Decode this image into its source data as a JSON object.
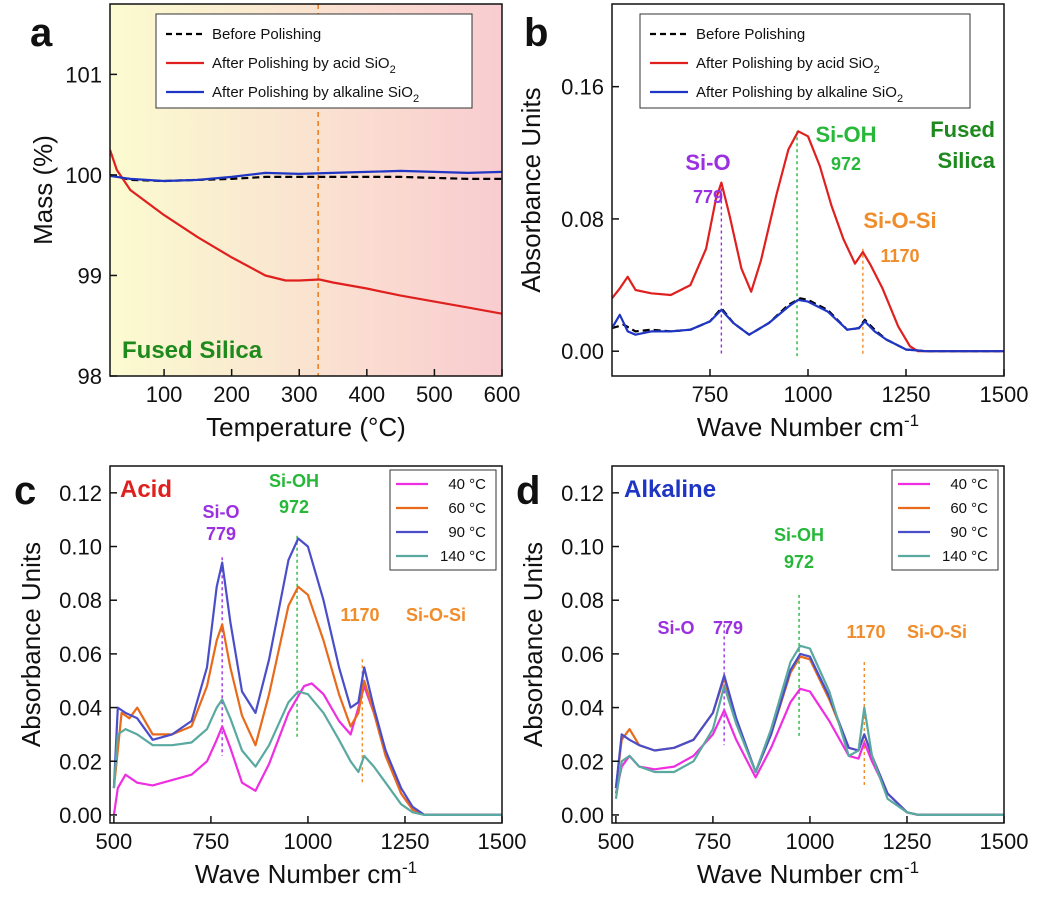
{
  "chart_data": [
    {
      "panel": "a",
      "type": "line",
      "xlabel": "Temperature (°C)",
      "ylabel": "Mass (%)",
      "xlim": [
        20,
        600
      ],
      "ylim": [
        98,
        101.7
      ],
      "xticks": [
        100,
        200,
        300,
        400,
        500,
        600
      ],
      "yticks": [
        98,
        99,
        100,
        101
      ],
      "x_reference_line": 328,
      "background_gradient": [
        "#fbfbd0",
        "#f9ccd0"
      ],
      "corner_label": "Fused Silica",
      "corner_color": "#1e8a1e",
      "legend_position": "top-center",
      "series": [
        {
          "name": "Before Polishing",
          "color": "#000000",
          "dash": "dashed",
          "x": [
            20,
            50,
            100,
            150,
            200,
            250,
            300,
            350,
            400,
            450,
            500,
            550,
            600
          ],
          "y": [
            100.0,
            99.95,
            99.94,
            99.95,
            99.96,
            99.98,
            99.98,
            99.98,
            99.98,
            99.98,
            99.97,
            99.96,
            99.96
          ]
        },
        {
          "name": "After Polishing by acid SiO2",
          "color": "#e0201e",
          "dash": "solid",
          "x": [
            20,
            30,
            50,
            100,
            150,
            200,
            250,
            280,
            300,
            330,
            350,
            400,
            450,
            500,
            550,
            600
          ],
          "y": [
            100.25,
            100.05,
            99.85,
            99.6,
            99.38,
            99.18,
            99.0,
            98.95,
            98.95,
            98.96,
            98.93,
            98.87,
            98.8,
            98.74,
            98.68,
            98.62
          ]
        },
        {
          "name": "After Polishing by alkaline SiO2",
          "color": "#1f35c4",
          "dash": "solid",
          "x": [
            20,
            50,
            100,
            150,
            200,
            250,
            300,
            350,
            400,
            450,
            500,
            550,
            600
          ],
          "y": [
            99.99,
            99.96,
            99.94,
            99.95,
            99.98,
            100.02,
            100.01,
            100.02,
            100.03,
            100.04,
            100.03,
            100.02,
            100.03
          ]
        }
      ]
    },
    {
      "panel": "b",
      "type": "line",
      "xlabel": "Wave Number cm⁻¹",
      "ylabel": "Absorbance Units",
      "xlim": [
        500,
        1500
      ],
      "ylim": [
        -0.015,
        0.21
      ],
      "xticks": [
        750,
        1000,
        1250,
        1500
      ],
      "yticks": [
        0.0,
        0.08,
        0.16
      ],
      "corner_label": [
        "Fused",
        "Silica"
      ],
      "corner_color": "#1e8a1e",
      "legend_position": "top-center",
      "annotations": [
        {
          "text": "Si-O",
          "sub": "779",
          "x": 779,
          "color": "#9b30e0"
        },
        {
          "text": "Si-OH",
          "sub": "972",
          "x": 972,
          "color": "#27b83a"
        },
        {
          "text": "Si-O-Si",
          "sub": "1170",
          "x": 1140,
          "color": "#f08c2a"
        }
      ],
      "series": [
        {
          "name": "Before Polishing",
          "color": "#000000",
          "dash": "dashed",
          "x": [
            500,
            530,
            560,
            600,
            650,
            700,
            750,
            779,
            810,
            850,
            900,
            950,
            980,
            1000,
            1050,
            1100,
            1130,
            1145,
            1170,
            1200,
            1250,
            1300,
            1500
          ],
          "y": [
            0.014,
            0.016,
            0.012,
            0.013,
            0.012,
            0.013,
            0.018,
            0.026,
            0.017,
            0.01,
            0.017,
            0.028,
            0.032,
            0.031,
            0.025,
            0.013,
            0.014,
            0.019,
            0.013,
            0.007,
            0.001,
            0.0,
            0.0
          ]
        },
        {
          "name": "After Polishing by acid SiO2",
          "color": "#e0201e",
          "dash": "solid",
          "x": [
            500,
            520,
            540,
            560,
            600,
            650,
            700,
            740,
            765,
            779,
            800,
            830,
            855,
            880,
            920,
            950,
            975,
            1000,
            1030,
            1060,
            1090,
            1120,
            1140,
            1160,
            1190,
            1230,
            1260,
            1280,
            1500
          ],
          "y": [
            0.032,
            0.038,
            0.045,
            0.037,
            0.035,
            0.034,
            0.04,
            0.062,
            0.092,
            0.102,
            0.082,
            0.05,
            0.036,
            0.055,
            0.095,
            0.122,
            0.133,
            0.13,
            0.112,
            0.088,
            0.068,
            0.053,
            0.06,
            0.052,
            0.038,
            0.015,
            0.003,
            0.0,
            0.0
          ]
        },
        {
          "name": "After Polishing by alkaline SiO2",
          "color": "#1f35c4",
          "dash": "solid",
          "x": [
            500,
            520,
            540,
            560,
            600,
            650,
            700,
            750,
            779,
            810,
            850,
            900,
            950,
            975,
            1000,
            1050,
            1100,
            1130,
            1145,
            1170,
            1200,
            1250,
            1300,
            1500
          ],
          "y": [
            0.014,
            0.022,
            0.012,
            0.01,
            0.012,
            0.012,
            0.013,
            0.018,
            0.025,
            0.017,
            0.01,
            0.017,
            0.027,
            0.031,
            0.03,
            0.024,
            0.013,
            0.014,
            0.018,
            0.012,
            0.007,
            0.001,
            0.0,
            0.0
          ]
        }
      ]
    },
    {
      "panel": "c",
      "type": "line",
      "xlabel": "Wave Number cm⁻¹",
      "ylabel": "Absorbance Units",
      "xlim": [
        490,
        1500
      ],
      "ylim": [
        -0.003,
        0.13
      ],
      "xticks": [
        500,
        750,
        1000,
        1250,
        1500
      ],
      "yticks": [
        0.0,
        0.02,
        0.04,
        0.06,
        0.08,
        0.1,
        0.12
      ],
      "corner_label": "Acid",
      "corner_color": "#e0201e",
      "legend_position": "top-right",
      "annotations": [
        {
          "text": "Si-O",
          "sub": "779",
          "x": 779,
          "color": "#9b30e0"
        },
        {
          "text": "Si-OH",
          "sub": "972",
          "x": 972,
          "color": "#27b83a"
        },
        {
          "text": "Si-O-Si",
          "sub": "1170",
          "x": 1140,
          "color": "#f08c2a"
        }
      ],
      "series": [
        {
          "name": "40 °C",
          "color": "#ee2ee0",
          "x": [
            500,
            510,
            530,
            560,
            600,
            650,
            700,
            740,
            765,
            779,
            800,
            830,
            865,
            900,
            950,
            990,
            1010,
            1040,
            1080,
            1110,
            1130,
            1145,
            1170,
            1200,
            1240,
            1270,
            1300,
            1500
          ],
          "y": [
            0.0,
            0.01,
            0.015,
            0.012,
            0.011,
            0.013,
            0.015,
            0.02,
            0.028,
            0.033,
            0.025,
            0.012,
            0.009,
            0.019,
            0.038,
            0.048,
            0.049,
            0.045,
            0.035,
            0.03,
            0.04,
            0.048,
            0.038,
            0.024,
            0.008,
            0.002,
            0.0,
            0.0
          ]
        },
        {
          "name": "60 °C",
          "color": "#e86a1a",
          "x": [
            500,
            520,
            540,
            560,
            600,
            650,
            700,
            740,
            765,
            779,
            800,
            830,
            865,
            900,
            950,
            975,
            1000,
            1040,
            1080,
            1110,
            1130,
            1145,
            1170,
            1200,
            1240,
            1270,
            1300,
            1500
          ],
          "y": [
            0.01,
            0.038,
            0.036,
            0.04,
            0.03,
            0.03,
            0.033,
            0.048,
            0.065,
            0.071,
            0.055,
            0.037,
            0.026,
            0.045,
            0.078,
            0.085,
            0.082,
            0.065,
            0.045,
            0.033,
            0.038,
            0.05,
            0.038,
            0.022,
            0.008,
            0.002,
            0.0,
            0.0
          ]
        },
        {
          "name": "90 °C",
          "color": "#4a4ec8",
          "x": [
            500,
            510,
            530,
            560,
            600,
            650,
            700,
            740,
            765,
            779,
            800,
            830,
            865,
            900,
            950,
            975,
            1000,
            1040,
            1080,
            1110,
            1130,
            1145,
            1170,
            1200,
            1240,
            1270,
            1300,
            1500
          ],
          "y": [
            0.01,
            0.04,
            0.038,
            0.036,
            0.028,
            0.03,
            0.035,
            0.055,
            0.085,
            0.094,
            0.072,
            0.046,
            0.038,
            0.058,
            0.095,
            0.103,
            0.1,
            0.08,
            0.055,
            0.04,
            0.042,
            0.055,
            0.04,
            0.024,
            0.01,
            0.003,
            0.0,
            0.0
          ]
        },
        {
          "name": "140 °C",
          "color": "#5aa9a0",
          "x": [
            500,
            510,
            530,
            560,
            600,
            650,
            700,
            740,
            765,
            779,
            800,
            830,
            865,
            900,
            950,
            975,
            1000,
            1040,
            1080,
            1110,
            1130,
            1145,
            1170,
            1200,
            1240,
            1270,
            1300,
            1500
          ],
          "y": [
            0.01,
            0.03,
            0.032,
            0.03,
            0.026,
            0.026,
            0.027,
            0.032,
            0.04,
            0.043,
            0.036,
            0.024,
            0.018,
            0.026,
            0.042,
            0.046,
            0.045,
            0.038,
            0.028,
            0.02,
            0.016,
            0.022,
            0.018,
            0.012,
            0.004,
            0.001,
            0.0,
            0.0
          ]
        }
      ]
    },
    {
      "panel": "d",
      "type": "line",
      "xlabel": "Wave Number cm⁻¹",
      "ylabel": "Absorbance Units",
      "xlim": [
        490,
        1500
      ],
      "ylim": [
        -0.003,
        0.13
      ],
      "xticks": [
        500,
        750,
        1000,
        1250,
        1500
      ],
      "yticks": [
        0.0,
        0.02,
        0.04,
        0.06,
        0.08,
        0.1,
        0.12
      ],
      "corner_label": "Alkaline",
      "corner_color": "#1f35c4",
      "legend_position": "top-right",
      "annotations": [
        {
          "text": "Si-O",
          "sub": "779",
          "x": 779,
          "color": "#9b30e0"
        },
        {
          "text": "Si-OH",
          "sub": "972",
          "x": 972,
          "color": "#27b83a"
        },
        {
          "text": "Si-O-Si",
          "sub": "1170",
          "x": 1140,
          "color": "#f08c2a"
        }
      ],
      "series": [
        {
          "name": "40 °C",
          "color": "#ee2ee0",
          "x": [
            500,
            515,
            535,
            560,
            600,
            650,
            700,
            750,
            779,
            810,
            860,
            900,
            950,
            975,
            1000,
            1050,
            1100,
            1125,
            1140,
            1160,
            1200,
            1250,
            1280,
            1500
          ],
          "y": [
            0.008,
            0.018,
            0.022,
            0.018,
            0.017,
            0.018,
            0.022,
            0.03,
            0.039,
            0.028,
            0.014,
            0.025,
            0.042,
            0.047,
            0.046,
            0.035,
            0.022,
            0.021,
            0.027,
            0.02,
            0.008,
            0.001,
            0.0,
            0.0
          ]
        },
        {
          "name": "60 °C",
          "color": "#e86a1a",
          "x": [
            500,
            515,
            535,
            560,
            600,
            650,
            700,
            750,
            779,
            810,
            860,
            900,
            950,
            975,
            1000,
            1050,
            1100,
            1125,
            1140,
            1160,
            1200,
            1250,
            1280,
            1500
          ],
          "y": [
            0.01,
            0.028,
            0.032,
            0.026,
            0.024,
            0.025,
            0.028,
            0.038,
            0.051,
            0.035,
            0.016,
            0.03,
            0.053,
            0.059,
            0.058,
            0.043,
            0.025,
            0.024,
            0.03,
            0.022,
            0.008,
            0.001,
            0.0,
            0.0
          ]
        },
        {
          "name": "90 °C",
          "color": "#4a4ec8",
          "x": [
            500,
            515,
            535,
            560,
            600,
            650,
            700,
            750,
            779,
            810,
            860,
            900,
            950,
            975,
            1000,
            1050,
            1100,
            1125,
            1140,
            1160,
            1200,
            1250,
            1280,
            1500
          ],
          "y": [
            0.01,
            0.03,
            0.028,
            0.026,
            0.024,
            0.025,
            0.028,
            0.038,
            0.052,
            0.036,
            0.016,
            0.03,
            0.054,
            0.06,
            0.059,
            0.044,
            0.025,
            0.024,
            0.03,
            0.022,
            0.008,
            0.001,
            0.0,
            0.0
          ]
        },
        {
          "name": "140 °C",
          "color": "#5aa9a0",
          "x": [
            500,
            515,
            535,
            560,
            600,
            650,
            700,
            750,
            779,
            810,
            860,
            900,
            950,
            975,
            1000,
            1050,
            1100,
            1125,
            1140,
            1160,
            1200,
            1250,
            1280,
            1500
          ],
          "y": [
            0.006,
            0.02,
            0.022,
            0.018,
            0.016,
            0.016,
            0.02,
            0.032,
            0.048,
            0.034,
            0.016,
            0.032,
            0.057,
            0.063,
            0.062,
            0.046,
            0.022,
            0.024,
            0.04,
            0.022,
            0.006,
            0.001,
            0.0,
            0.0
          ]
        }
      ]
    }
  ],
  "panel_labels": [
    "a",
    "b",
    "c",
    "d"
  ]
}
